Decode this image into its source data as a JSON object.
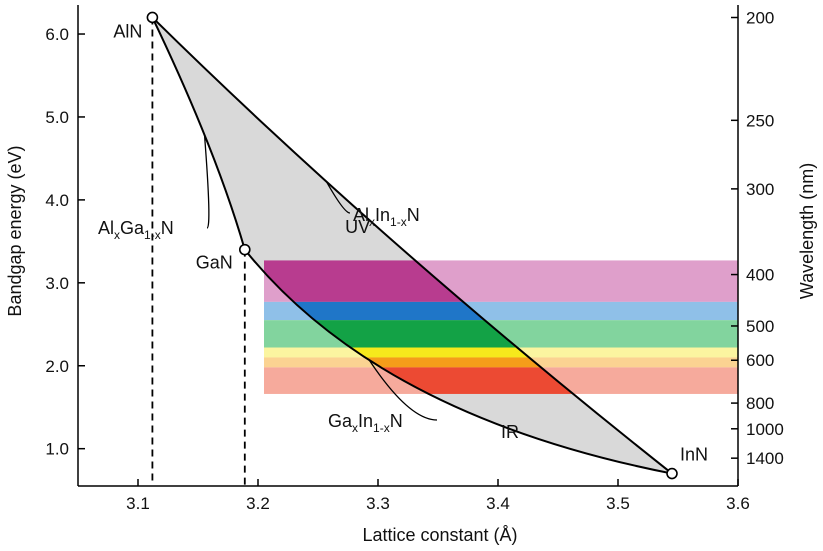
{
  "chart_data": {
    "type": "line",
    "xlabel": "Lattice constant (Å)",
    "ylabel": "Bandgap energy (eV)",
    "y2label": "Wavelength (nm)",
    "xlim": [
      3.05,
      3.6
    ],
    "ylim": [
      0.55,
      6.35
    ],
    "x_ticks": [
      3.1,
      3.2,
      3.3,
      3.4,
      3.5,
      3.6
    ],
    "x_tick_labels": [
      "3.1",
      "3.2",
      "3.3",
      "3.4",
      "3.5",
      "3.6"
    ],
    "y_ticks": [
      1.0,
      2.0,
      3.0,
      4.0,
      5.0,
      6.0
    ],
    "y_tick_labels": [
      "1.0",
      "2.0",
      "3.0",
      "4.0",
      "5.0",
      "6.0"
    ],
    "y2_ticks_nm": [
      200,
      250,
      300,
      400,
      500,
      600,
      800,
      1000,
      1400
    ],
    "y2_tick_labels": [
      "200",
      "250",
      "300",
      "400",
      "500",
      "600",
      "800",
      "1000",
      "1400"
    ],
    "points": [
      {
        "name": "AlN",
        "x": 3.112,
        "y": 6.2
      },
      {
        "name": "GaN",
        "x": 3.189,
        "y": 3.4
      },
      {
        "name": "InN",
        "x": 3.545,
        "y": 0.7
      }
    ],
    "series": [
      {
        "name_parts": [
          "Al",
          "x",
          "Ga",
          "1-x",
          "N"
        ],
        "from": "AlN",
        "to": "GaN",
        "bow_ctrl": {
          "x": 3.165,
          "y": 4.6
        }
      },
      {
        "name_parts": [
          "Al",
          "x",
          "In",
          "1-x",
          "N"
        ],
        "from": "AlN",
        "to": "InN",
        "bow_ctrl": {
          "x": 3.305,
          "y": 3.45
        }
      },
      {
        "name_parts": [
          "Ga",
          "x",
          "In",
          "1-x",
          "N"
        ],
        "from": "GaN",
        "to": "InN",
        "bow_ctrl": {
          "x": 3.3,
          "y": 1.4
        }
      }
    ],
    "region_labels": [
      {
        "text": "UV",
        "x": 3.283,
        "y": 3.6
      },
      {
        "text": "IR",
        "x": 3.41,
        "y": 1.13
      }
    ],
    "bands": [
      {
        "y_top": 3.27,
        "y_bottom": 2.77,
        "color": "#b83c8f",
        "light_color": "#df9fcb"
      },
      {
        "y_top": 2.77,
        "y_bottom": 2.55,
        "color": "#1f76c8",
        "light_color": "#8fc0e8"
      },
      {
        "y_top": 2.55,
        "y_bottom": 2.22,
        "color": "#13a246",
        "light_color": "#82d49e"
      },
      {
        "y_top": 2.22,
        "y_bottom": 2.1,
        "color": "#f6e91c",
        "light_color": "#fbf5a0"
      },
      {
        "y_top": 2.1,
        "y_bottom": 1.98,
        "color": "#f59d1a",
        "light_color": "#fbd392"
      },
      {
        "y_top": 1.98,
        "y_bottom": 1.66,
        "color": "#ec4a33",
        "light_color": "#f6aa9c"
      }
    ],
    "fill_color": "#d9d9d9"
  }
}
